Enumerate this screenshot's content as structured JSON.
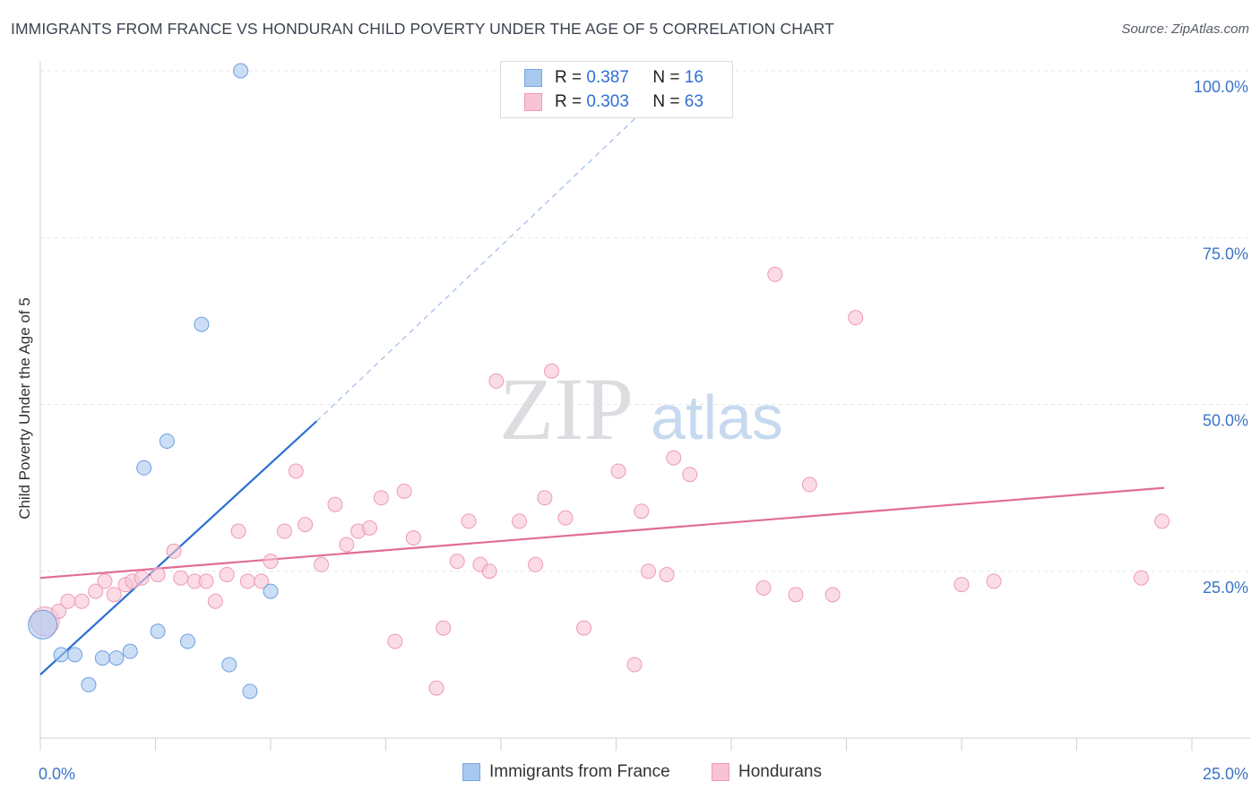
{
  "title": "IMMIGRANTS FROM FRANCE VS HONDURAN CHILD POVERTY UNDER THE AGE OF 5 CORRELATION CHART",
  "source": "Source: ZipAtlas.com",
  "watermark": {
    "zip": "ZIP",
    "atlas": "atlas"
  },
  "legend": {
    "rows": [
      {
        "r_label": "R =",
        "r_value": "0.387",
        "n_label": "N =",
        "n_value": "16",
        "color": "#a8c8f0",
        "border": "#7aa7e0"
      },
      {
        "r_label": "R =",
        "r_value": "0.303",
        "n_label": "N =",
        "n_value": "63",
        "color": "#f8c4d4",
        "border": "#ee9ab4"
      }
    ]
  },
  "bottom_legend": [
    {
      "label": "Immigrants from France",
      "color": "#a8c8f0",
      "border": "#7aa7e0"
    },
    {
      "label": "Hondurans",
      "color": "#f8c4d4",
      "border": "#ee9ab4"
    }
  ],
  "chart_data": {
    "type": "scatter",
    "ylabel": "Child Poverty Under the Age of 5",
    "xlabel": "",
    "xlim": [
      0,
      25
    ],
    "ylim": [
      0,
      100
    ],
    "x_tick_labels": [
      "0.0%",
      "25.0%"
    ],
    "y_tick_labels": [
      "25.0%",
      "50.0%",
      "75.0%",
      "100.0%"
    ],
    "y_ticks": [
      25,
      50,
      75,
      100
    ],
    "grid": true,
    "legend_position": "top-center",
    "series": [
      {
        "name": "Immigrants from France",
        "color": "#a8c8f0",
        "stroke": "#6e9fe0",
        "line_color": "#2a6fd4",
        "trend": {
          "x0": 0,
          "y0": 9.5,
          "x1": 6,
          "y1": 47.5,
          "dash_to_x": 14,
          "dash_to_y": 100
        },
        "points": [
          {
            "x": 0.05,
            "y": 17.0,
            "big": true
          },
          {
            "x": 0.45,
            "y": 12.5
          },
          {
            "x": 0.75,
            "y": 12.5
          },
          {
            "x": 1.05,
            "y": 8.0
          },
          {
            "x": 1.35,
            "y": 12.0
          },
          {
            "x": 1.65,
            "y": 12.0
          },
          {
            "x": 1.95,
            "y": 13.0
          },
          {
            "x": 2.25,
            "y": 40.5
          },
          {
            "x": 2.55,
            "y": 16.0
          },
          {
            "x": 2.75,
            "y": 44.5
          },
          {
            "x": 3.2,
            "y": 14.5
          },
          {
            "x": 3.5,
            "y": 62.0
          },
          {
            "x": 4.1,
            "y": 11.0
          },
          {
            "x": 4.35,
            "y": 100.0
          },
          {
            "x": 4.55,
            "y": 7.0
          },
          {
            "x": 5.0,
            "y": 22.0
          }
        ]
      },
      {
        "name": "Hondurans",
        "color": "#f8c4d4",
        "stroke": "#ee9ab4",
        "line_color": "#e06c96",
        "trend": {
          "x0": 0,
          "y0": 24.0,
          "x1": 24.4,
          "y1": 37.5
        },
        "points": [
          {
            "x": 0.1,
            "y": 17.5,
            "big": true
          },
          {
            "x": 0.4,
            "y": 19.0
          },
          {
            "x": 0.6,
            "y": 20.5
          },
          {
            "x": 0.9,
            "y": 20.5
          },
          {
            "x": 1.2,
            "y": 22.0
          },
          {
            "x": 1.4,
            "y": 23.5
          },
          {
            "x": 1.6,
            "y": 21.5
          },
          {
            "x": 1.85,
            "y": 23.0
          },
          {
            "x": 2.0,
            "y": 23.5
          },
          {
            "x": 2.2,
            "y": 24.0
          },
          {
            "x": 2.55,
            "y": 24.5
          },
          {
            "x": 2.9,
            "y": 28.0
          },
          {
            "x": 3.05,
            "y": 24.0
          },
          {
            "x": 3.35,
            "y": 23.5
          },
          {
            "x": 3.6,
            "y": 23.5
          },
          {
            "x": 3.8,
            "y": 20.5
          },
          {
            "x": 4.05,
            "y": 24.5
          },
          {
            "x": 4.3,
            "y": 31.0
          },
          {
            "x": 4.5,
            "y": 23.5
          },
          {
            "x": 4.8,
            "y": 23.5
          },
          {
            "x": 5.0,
            "y": 26.5
          },
          {
            "x": 5.3,
            "y": 31.0
          },
          {
            "x": 5.55,
            "y": 40.0
          },
          {
            "x": 5.75,
            "y": 32.0
          },
          {
            "x": 6.1,
            "y": 26.0
          },
          {
            "x": 6.4,
            "y": 35.0
          },
          {
            "x": 6.65,
            "y": 29.0
          },
          {
            "x": 6.9,
            "y": 31.0
          },
          {
            "x": 7.15,
            "y": 31.5
          },
          {
            "x": 7.4,
            "y": 36.0
          },
          {
            "x": 7.7,
            "y": 14.5
          },
          {
            "x": 7.9,
            "y": 37.0
          },
          {
            "x": 8.1,
            "y": 30.0
          },
          {
            "x": 8.6,
            "y": 7.5
          },
          {
            "x": 8.75,
            "y": 16.5
          },
          {
            "x": 9.05,
            "y": 26.5
          },
          {
            "x": 9.3,
            "y": 32.5
          },
          {
            "x": 9.55,
            "y": 26.0
          },
          {
            "x": 9.75,
            "y": 25.0
          },
          {
            "x": 9.9,
            "y": 53.5
          },
          {
            "x": 10.4,
            "y": 32.5
          },
          {
            "x": 10.75,
            "y": 26.0
          },
          {
            "x": 10.95,
            "y": 36.0
          },
          {
            "x": 11.1,
            "y": 55.0
          },
          {
            "x": 11.4,
            "y": 33.0
          },
          {
            "x": 11.8,
            "y": 16.5
          },
          {
            "x": 12.55,
            "y": 40.0
          },
          {
            "x": 12.9,
            "y": 11.0
          },
          {
            "x": 13.05,
            "y": 34.0
          },
          {
            "x": 13.2,
            "y": 25.0
          },
          {
            "x": 13.6,
            "y": 24.5
          },
          {
            "x": 13.75,
            "y": 42.0
          },
          {
            "x": 14.1,
            "y": 39.5
          },
          {
            "x": 15.7,
            "y": 22.5
          },
          {
            "x": 15.95,
            "y": 69.5
          },
          {
            "x": 16.4,
            "y": 21.5
          },
          {
            "x": 16.7,
            "y": 38.0
          },
          {
            "x": 17.2,
            "y": 21.5
          },
          {
            "x": 17.7,
            "y": 63.0
          },
          {
            "x": 20.0,
            "y": 23.0
          },
          {
            "x": 20.7,
            "y": 23.5
          },
          {
            "x": 23.9,
            "y": 24.0
          },
          {
            "x": 24.35,
            "y": 32.5
          }
        ]
      }
    ]
  }
}
